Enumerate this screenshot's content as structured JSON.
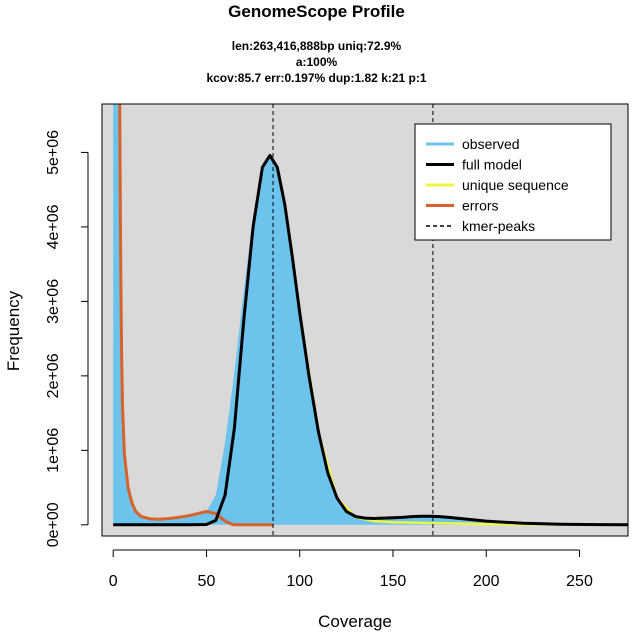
{
  "chart_data": {
    "type": "area",
    "title": "GenomeScope Profile",
    "subtitle_lines": [
      "len:263,416,888bp uniq:72.9%",
      "a:100%",
      "kcov:85.7 err:0.197%  dup:1.82  k:21 p:1"
    ],
    "xlabel": "Coverage",
    "ylabel": "Frequency",
    "xlim": [
      -6,
      276
    ],
    "ylim": [
      -150000,
      5650000
    ],
    "xticks": [
      0,
      50,
      100,
      150,
      200,
      250
    ],
    "xtick_labels": [
      "0",
      "50",
      "100",
      "150",
      "200",
      "250"
    ],
    "yticks": [
      0,
      1000000,
      2000000,
      3000000,
      4000000,
      5000000
    ],
    "ytick_labels": [
      "0e+00",
      "1e+06",
      "2e+06",
      "3e+06",
      "4e+06",
      "5e+06"
    ],
    "background": "#d9d9d9",
    "legend_position": "top-right",
    "legend": [
      {
        "label": "observed",
        "color": "#6cc3eb",
        "style": "solid"
      },
      {
        "label": "full model",
        "color": "#000000",
        "style": "solid"
      },
      {
        "label": "unique sequence",
        "color": "#eef542",
        "style": "solid"
      },
      {
        "label": "errors",
        "color": "#d9622b",
        "style": "solid"
      },
      {
        "label": "kmer-peaks",
        "color": "#000000",
        "style": "dashed"
      }
    ],
    "kmer_peaks": [
      85.7,
      171.4
    ],
    "series": [
      {
        "name": "observed",
        "color": "#6cc3eb",
        "x": [
          0,
          3,
          4,
          5,
          6,
          8,
          10,
          15,
          20,
          30,
          40,
          50,
          55,
          60,
          65,
          70,
          75,
          80,
          84,
          88,
          92,
          96,
          100,
          105,
          110,
          115,
          120,
          125,
          130,
          135,
          140,
          145,
          150,
          155,
          160,
          165,
          170,
          175,
          180,
          190,
          200,
          220,
          240,
          260,
          276
        ],
        "y": [
          5650000,
          5650000,
          2300000,
          1300000,
          900000,
          500000,
          300000,
          120000,
          80000,
          80000,
          120000,
          180000,
          400000,
          1100000,
          2050000,
          3150000,
          4150000,
          4800000,
          4950000,
          4800000,
          4300000,
          3600000,
          2850000,
          2000000,
          1250000,
          700000,
          360000,
          180000,
          110000,
          90000,
          85000,
          90000,
          95000,
          100000,
          110000,
          115000,
          115000,
          110000,
          100000,
          75000,
          50000,
          20000,
          8000,
          3000,
          1000
        ]
      },
      {
        "name": "full model",
        "color": "#000000",
        "x": [
          0,
          30,
          40,
          50,
          55,
          60,
          65,
          70,
          75,
          80,
          84,
          88,
          92,
          96,
          100,
          105,
          110,
          115,
          120,
          125,
          130,
          135,
          140,
          145,
          150,
          155,
          160,
          165,
          170,
          175,
          180,
          190,
          200,
          220,
          240,
          260,
          276
        ],
        "y": [
          0,
          0,
          0,
          5000,
          60000,
          400000,
          1300000,
          2750000,
          4000000,
          4800000,
          4960000,
          4800000,
          4300000,
          3600000,
          2850000,
          2000000,
          1250000,
          700000,
          360000,
          180000,
          110000,
          90000,
          85000,
          90000,
          95000,
          100000,
          110000,
          115000,
          115000,
          110000,
          100000,
          75000,
          50000,
          20000,
          8000,
          3000,
          1000
        ]
      },
      {
        "name": "unique sequence",
        "color": "#eef542",
        "x": [
          100,
          110,
          120,
          130,
          140,
          150,
          160,
          170,
          180,
          190,
          200,
          220,
          240,
          260,
          276
        ],
        "y": [
          2850000,
          1250000,
          360000,
          100000,
          50000,
          35000,
          30000,
          25000,
          20000,
          15000,
          10000,
          6000,
          3000,
          1500,
          800
        ]
      },
      {
        "name": "errors",
        "color": "#d9622b",
        "x": [
          3.5,
          4,
          4.5,
          5,
          6,
          8,
          10,
          12,
          15,
          20,
          25,
          30,
          35,
          40,
          45,
          50,
          55,
          60,
          64,
          65,
          70,
          75,
          80,
          86
        ],
        "y": [
          5650000,
          3500000,
          2300000,
          1600000,
          950000,
          500000,
          300000,
          180000,
          110000,
          80000,
          75000,
          85000,
          100000,
          120000,
          150000,
          180000,
          150000,
          50000,
          5000,
          0,
          0,
          0,
          0,
          0
        ]
      }
    ]
  }
}
